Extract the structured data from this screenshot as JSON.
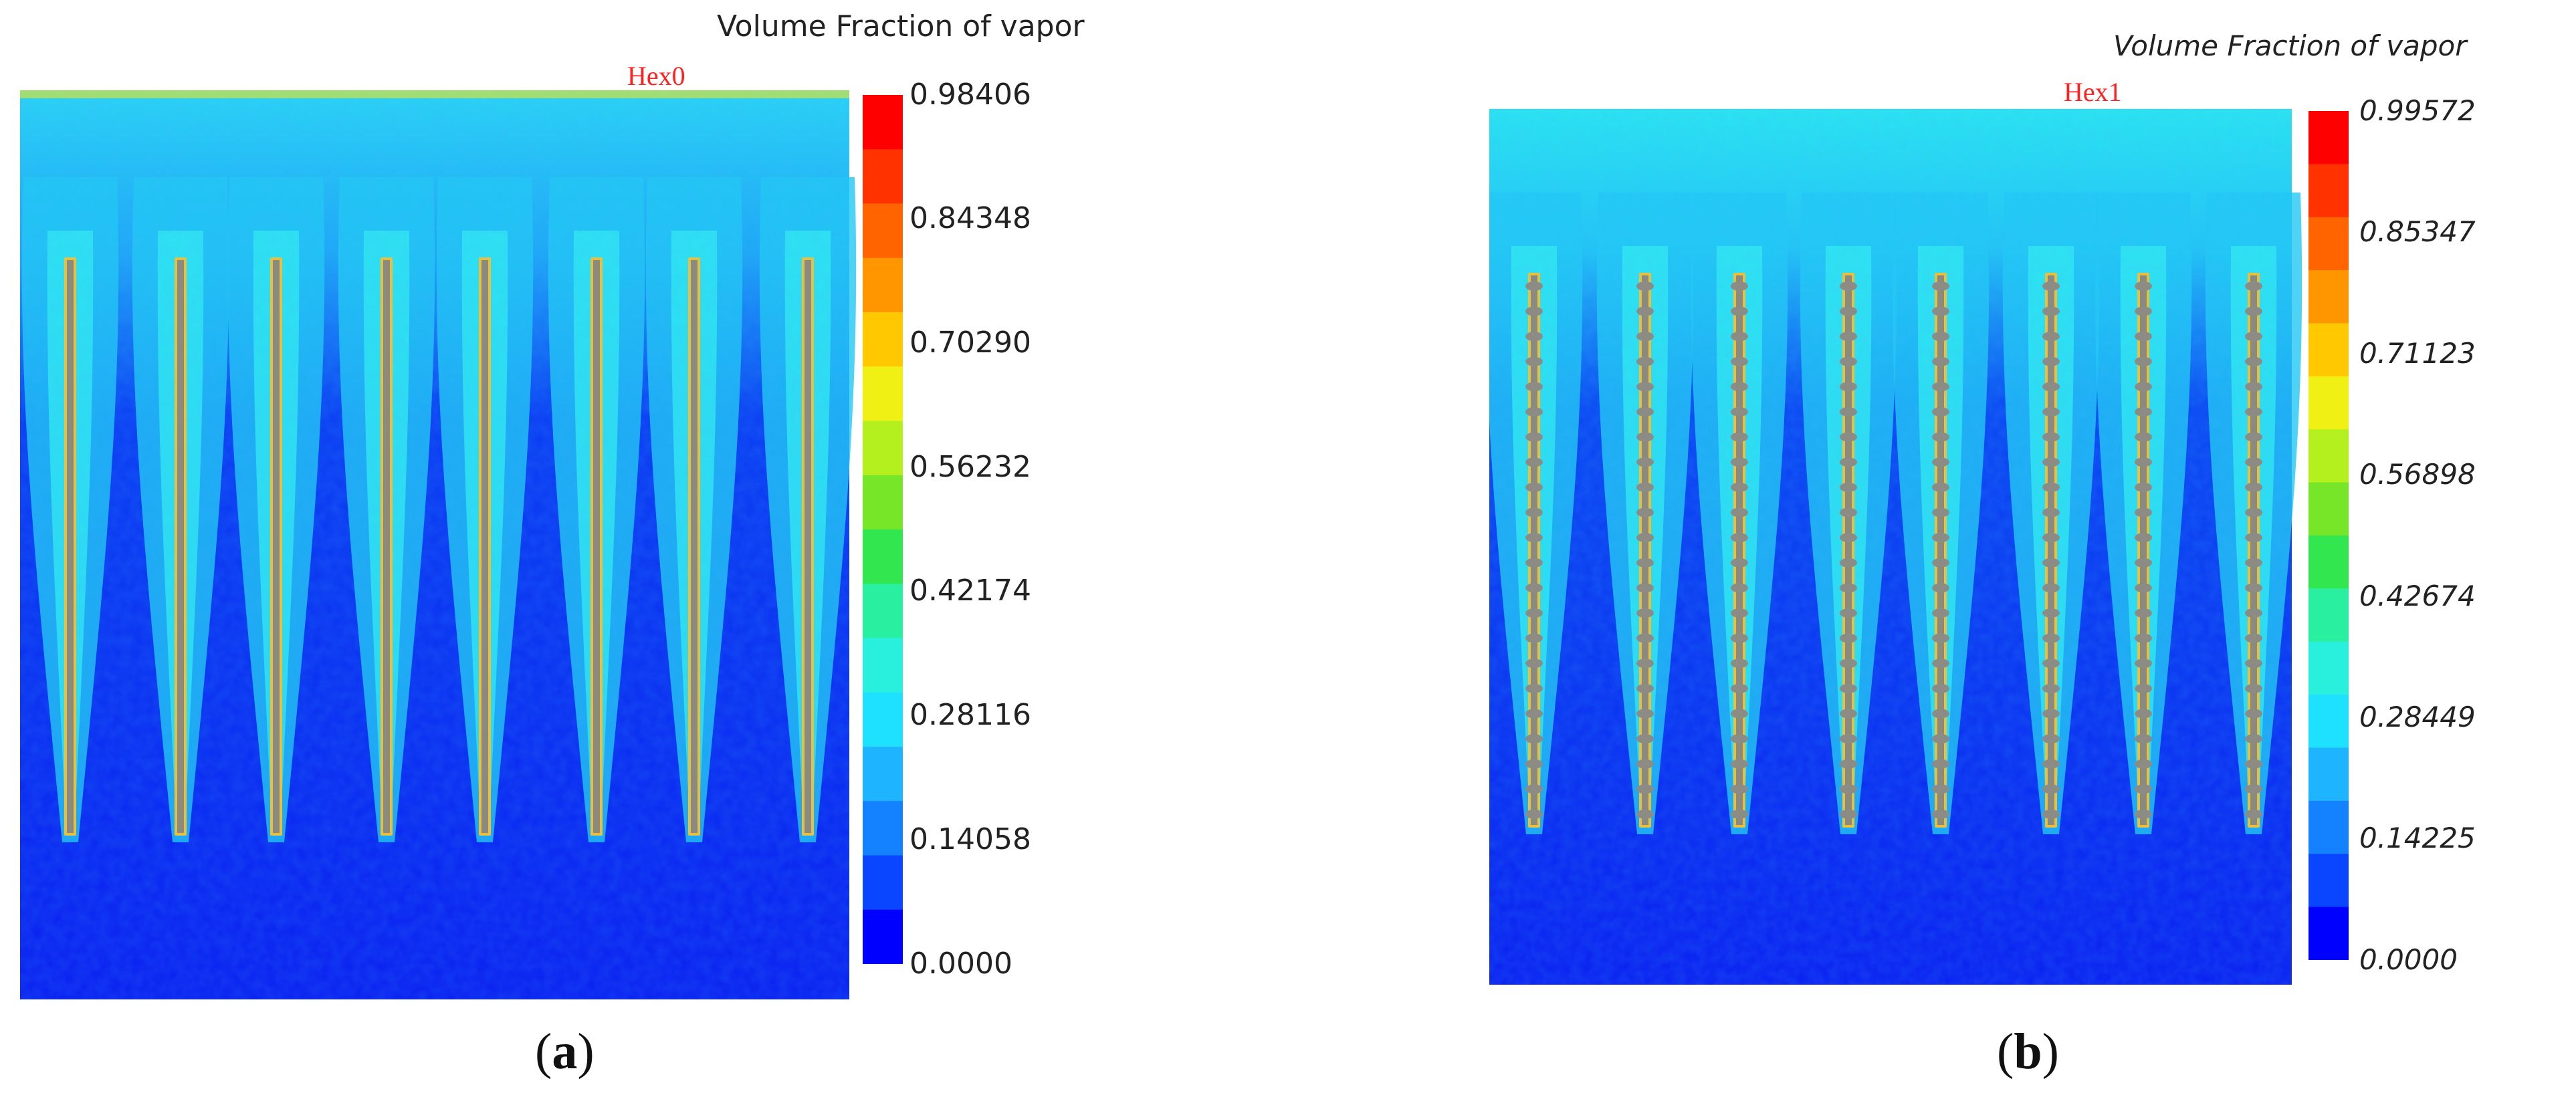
{
  "panels": [
    {
      "id": "a",
      "case_label": "Hex0",
      "colorbar_title": "Volume Fraction of vapor",
      "colorbar_ticks": [
        "0.98406",
        "0.84348",
        "0.70290",
        "0.56232",
        "0.42174",
        "0.28116",
        "0.14058",
        "0.0000"
      ],
      "tick_style": "normal",
      "rods": 8,
      "rod_nodules": false,
      "caption_letter": "a"
    },
    {
      "id": "b",
      "case_label": "Hex1",
      "colorbar_title": "Volume Fraction of vapor",
      "colorbar_ticks": [
        "0.99572",
        "0.85347",
        "0.71123",
        "0.56898",
        "0.42674",
        "0.28449",
        "0.14225",
        "0.0000"
      ],
      "tick_style": "italic",
      "rods": 8,
      "rod_nodules": true,
      "caption_letter": "b"
    }
  ],
  "colormap": [
    "#0000ff",
    "#0a46ff",
    "#1482ff",
    "#1eb4ff",
    "#1ee1ff",
    "#28f0dc",
    "#28f0a0",
    "#32e650",
    "#78e628",
    "#b4f01e",
    "#f0f014",
    "#ffc800",
    "#ff9600",
    "#ff6400",
    "#ff3200",
    "#ff0000"
  ],
  "colors": {
    "background_liquid": "#0a1ef0",
    "rod_outer": "#e8c040",
    "rod_core": "#8a8a80",
    "case_label": "#ff2020"
  }
}
